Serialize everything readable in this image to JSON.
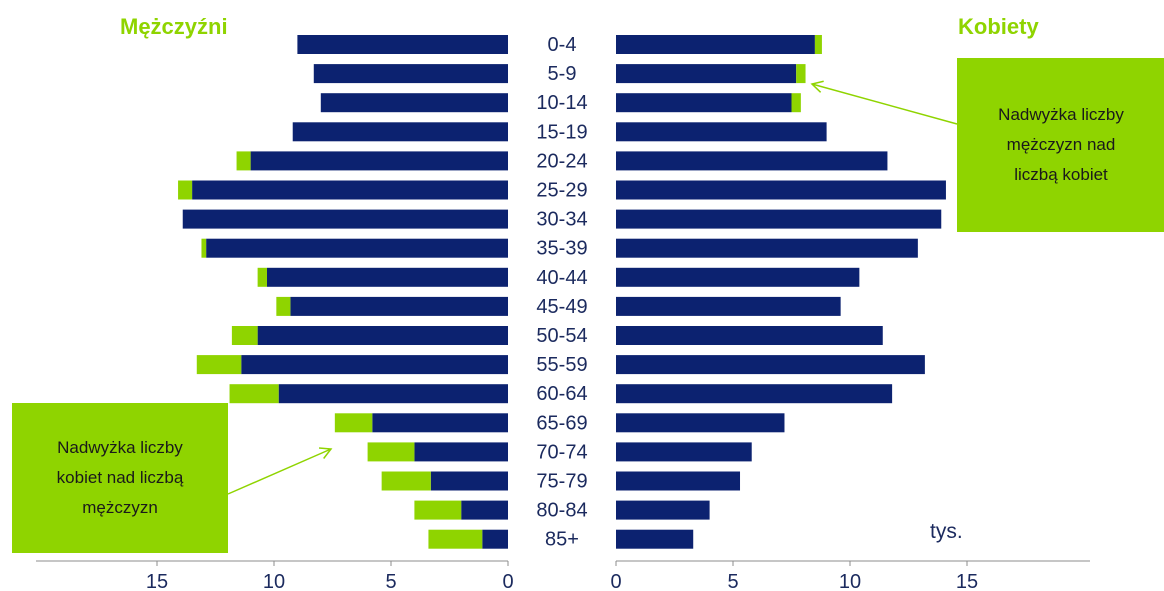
{
  "chart_data": {
    "type": "bar",
    "subtype": "population-pyramid",
    "left_title": "Mężczyźni",
    "right_title": "Kobiety",
    "unit": "tys.",
    "categories": [
      "0-4",
      "5-9",
      "10-14",
      "15-19",
      "20-24",
      "25-29",
      "30-34",
      "35-39",
      "40-44",
      "45-49",
      "50-54",
      "55-59",
      "60-64",
      "65-69",
      "70-74",
      "75-79",
      "80-84",
      "85+"
    ],
    "xlim": [
      0,
      15
    ],
    "left_ticks": [
      "15",
      "10",
      "5",
      "0"
    ],
    "right_ticks": [
      "0",
      "5",
      "10",
      "15"
    ],
    "series": [
      {
        "side": "left",
        "color": "#0c2270",
        "values": [
          9.0,
          8.3,
          8.0,
          9.2,
          11.0,
          13.5,
          13.9,
          12.9,
          10.3,
          9.3,
          10.7,
          11.4,
          9.8,
          5.8,
          4.0,
          3.3,
          2.0,
          1.1
        ]
      },
      {
        "side": "left",
        "color": "#8fd400",
        "values": [
          0.0,
          0.0,
          0.0,
          0.0,
          0.6,
          0.6,
          0.0,
          0.2,
          0.4,
          0.6,
          1.1,
          1.9,
          2.1,
          1.6,
          2.0,
          2.1,
          2.0,
          2.3
        ]
      },
      {
        "side": "right",
        "color": "#0c2270",
        "values": [
          8.5,
          7.7,
          7.5,
          9.0,
          11.6,
          14.1,
          13.9,
          12.9,
          10.4,
          9.6,
          11.4,
          13.2,
          11.8,
          7.2,
          5.8,
          5.3,
          4.0,
          3.3
        ]
      },
      {
        "side": "right",
        "color": "#8fd400",
        "values": [
          0.3,
          0.4,
          0.4,
          0.0,
          0.0,
          0.0,
          0.0,
          0.0,
          0.0,
          0.0,
          0.0,
          0.0,
          0.0,
          0.0,
          0.0,
          0.0,
          0.0,
          0.0
        ]
      }
    ],
    "annotations": [
      {
        "text": "Nadwyżka liczby mężczyzn nad liczbą kobiet",
        "points_to": "5-9"
      },
      {
        "text": "Nadwyżka liczby kobiet nad liczbą mężczyzn",
        "points_to": "70-74"
      }
    ],
    "colors": {
      "male_base": "#0c2270",
      "surplus": "#8fd400",
      "text": "#1b2a5e",
      "axis": "#8c8c8c"
    }
  },
  "callout_right": {
    "line1": "Nadwyżka liczby",
    "line2": "mężczyzn nad",
    "line3": "liczbą kobiet"
  },
  "callout_left": {
    "line1": "Nadwyżka liczby",
    "line2": "kobiet nad liczbą",
    "line3": "mężczyzn"
  }
}
